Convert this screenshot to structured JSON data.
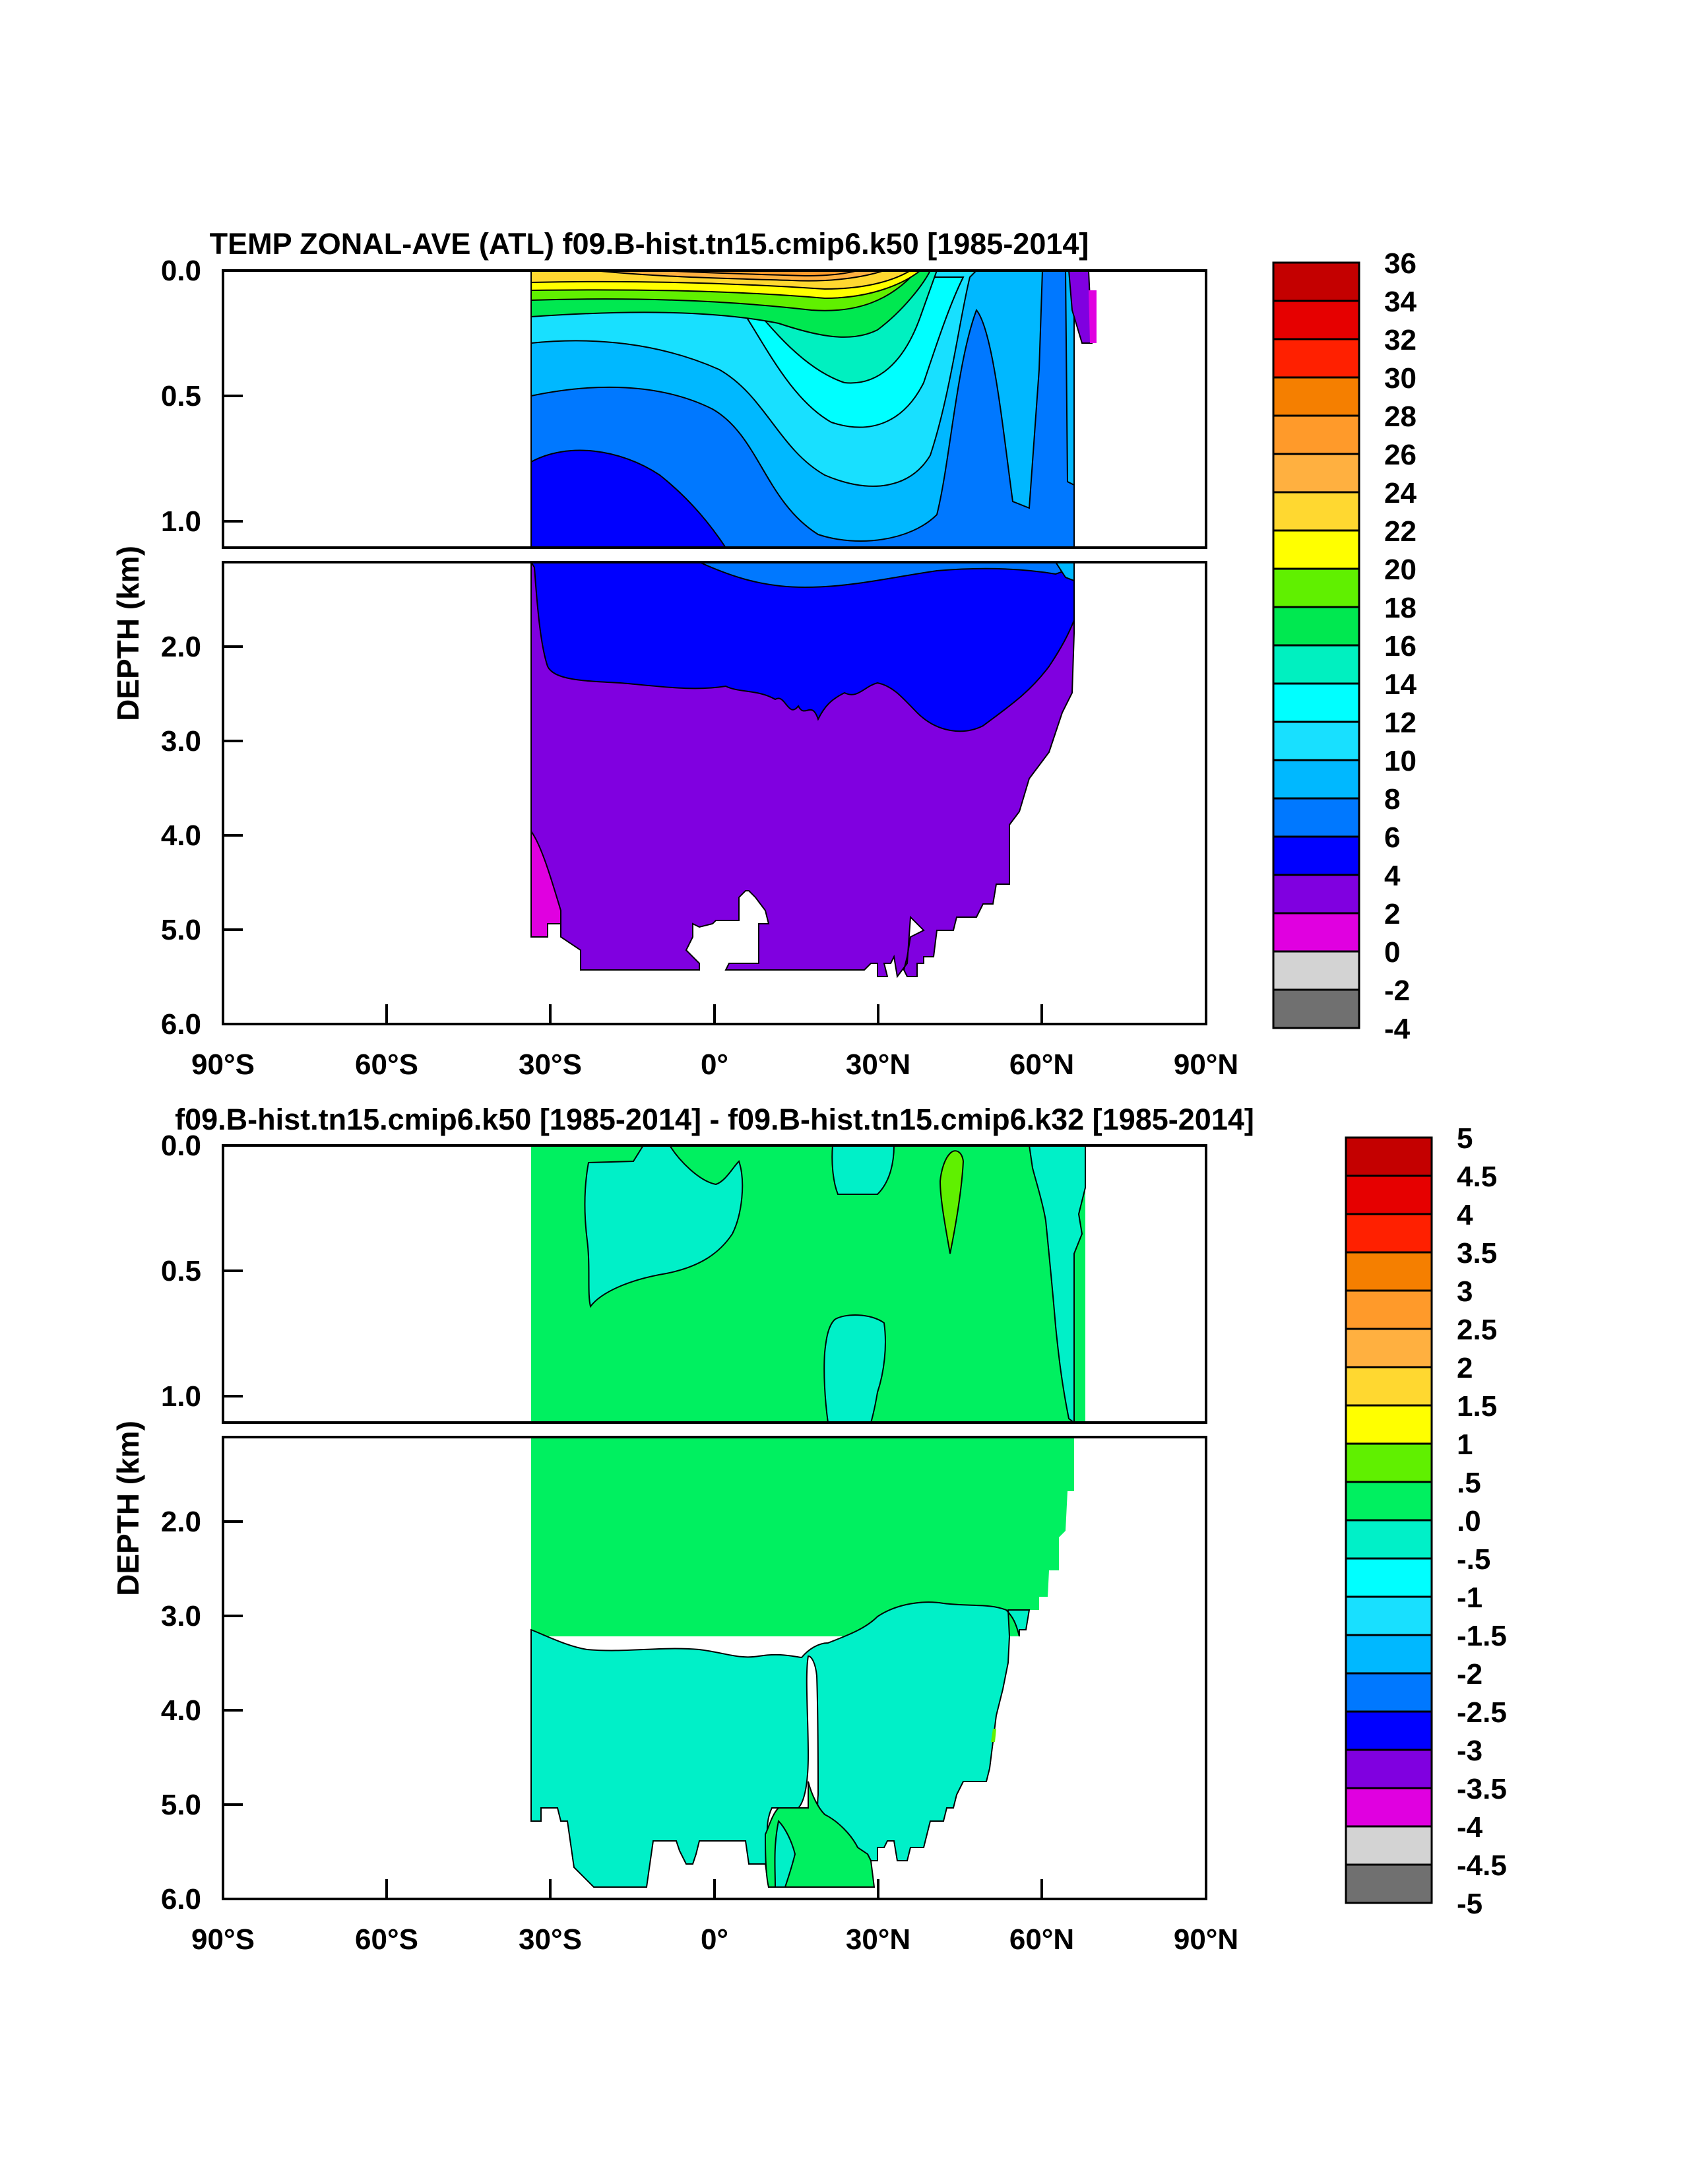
{
  "chart_data": [
    {
      "type": "heatmap",
      "title": "TEMP ZONAL-AVE (ATL) f09.B-hist.tn15.cmip6.k50 [1985-2014]",
      "ylabel": "DEPTH (km)",
      "xlabel": "",
      "x_ticks": [
        "90°S",
        "60°S",
        "30°S",
        "0°",
        "30°N",
        "60°N",
        "90°N"
      ],
      "xlim": [
        -90,
        90
      ],
      "y_ticks_upper": [
        "0.0",
        "0.5",
        "1.0"
      ],
      "y_ticks_lower": [
        "2.0",
        "3.0",
        "4.0",
        "5.0",
        "6.0"
      ],
      "ylim_upper": [
        0,
        1.1
      ],
      "ylim_lower": [
        1.1,
        6.0
      ],
      "colorbar": {
        "levels": [
          "36",
          "34",
          "32",
          "30",
          "28",
          "26",
          "24",
          "22",
          "20",
          "18",
          "16",
          "14",
          "12",
          "10",
          "8",
          "6",
          "4",
          "2",
          "0",
          "-2",
          "-4"
        ],
        "colors": [
          "#c40000",
          "#e60000",
          "#ff2000",
          "#f57f00",
          "#ff9a2a",
          "#ffb040",
          "#ffd830",
          "#ffff00",
          "#60f000",
          "#00e850",
          "#00f0c0",
          "#00ffff",
          "#18e0ff",
          "#00b8ff",
          "#0078ff",
          "#0000ff",
          "#8000e0",
          "#e000e0",
          "#d3d3d3",
          "#707070"
        ]
      },
      "layers": [
        {
          "name": "deep",
          "value_range": [
            2,
            4
          ],
          "color": "#8000e0"
        },
        {
          "name": "bottom-south",
          "value_range": [
            0,
            2
          ],
          "color": "#e000e0"
        },
        {
          "name": "nadw",
          "value_range": [
            4,
            6
          ],
          "color": "#0000ff"
        },
        {
          "name": "l68",
          "value_range": [
            6,
            8
          ],
          "color": "#0078ff"
        },
        {
          "name": "l810",
          "value_range": [
            8,
            10
          ],
          "color": "#00b8ff"
        },
        {
          "name": "l1012",
          "value_range": [
            10,
            12
          ],
          "color": "#18e0ff"
        },
        {
          "name": "l1214",
          "value_range": [
            12,
            14
          ],
          "color": "#00ffff"
        },
        {
          "name": "l1416",
          "value_range": [
            14,
            16
          ],
          "color": "#00f0c0"
        },
        {
          "name": "l1618",
          "value_range": [
            16,
            18
          ],
          "color": "#00e850"
        },
        {
          "name": "l1820",
          "value_range": [
            18,
            20
          ],
          "color": "#60f000"
        },
        {
          "name": "l2022",
          "value_range": [
            20,
            22
          ],
          "color": "#ffff00"
        },
        {
          "name": "l2224",
          "value_range": [
            22,
            24
          ],
          "color": "#ffd830"
        },
        {
          "name": "l2426",
          "value_range": [
            24,
            26
          ],
          "color": "#ffb040"
        },
        {
          "name": "l2628",
          "value_range": [
            26,
            28
          ],
          "color": "#ff9a2a"
        }
      ]
    },
    {
      "type": "heatmap",
      "title": "f09.B-hist.tn15.cmip6.k50 [1985-2014] - f09.B-hist.tn15.cmip6.k32 [1985-2014]",
      "ylabel": "DEPTH (km)",
      "xlabel": "",
      "x_ticks": [
        "90°S",
        "60°S",
        "30°S",
        "0°",
        "30°N",
        "60°N",
        "90°N"
      ],
      "xlim": [
        -90,
        90
      ],
      "y_ticks_upper": [
        "0.0",
        "0.5",
        "1.0"
      ],
      "y_ticks_lower": [
        "2.0",
        "3.0",
        "4.0",
        "5.0",
        "6.0"
      ],
      "ylim_upper": [
        0,
        1.1
      ],
      "ylim_lower": [
        1.1,
        6.0
      ],
      "colorbar": {
        "levels": [
          "5",
          "4.5",
          "4",
          "3.5",
          "3",
          "2.5",
          "2",
          "1.5",
          "1",
          ".5",
          ".0",
          "-.5",
          "-1",
          "-1.5",
          "-2",
          "-2.5",
          "-3",
          "-3.5",
          "-4",
          "-4.5",
          "-5"
        ],
        "colors": [
          "#c40000",
          "#e60000",
          "#ff2000",
          "#f57f00",
          "#ff9a2a",
          "#ffb040",
          "#ffd830",
          "#ffff00",
          "#60f000",
          "#00f060",
          "#00f0c8",
          "#00ffff",
          "#18e0ff",
          "#00b8ff",
          "#0078ff",
          "#0000ff",
          "#8000e0",
          "#e000e0",
          "#d3d3d3",
          "#707070"
        ]
      },
      "layers": [
        {
          "name": "positive-0-0.5",
          "value_range": [
            0,
            0.5
          ],
          "color": "#00f060"
        },
        {
          "name": "negative-0.5-0",
          "value_range": [
            -0.5,
            0
          ],
          "color": "#00f0c8"
        },
        {
          "name": "positive-0.5-1",
          "value_range": [
            0.5,
            1
          ],
          "color": "#60f000"
        }
      ]
    }
  ]
}
